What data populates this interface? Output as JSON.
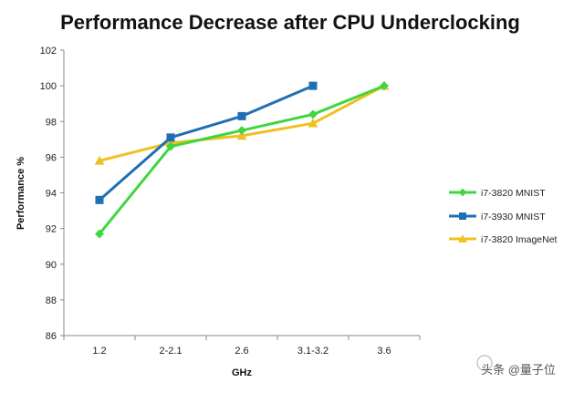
{
  "chart_data": {
    "type": "line",
    "title": "Performance Decrease after CPU Underclocking",
    "xlabel": "GHz",
    "ylabel": "Performance %",
    "categories": [
      "1.2",
      "2-2.1",
      "2.6",
      "3.1-3.2",
      "3.6"
    ],
    "ylim": [
      86,
      102
    ],
    "yticks": [
      86,
      88,
      90,
      92,
      94,
      96,
      98,
      100,
      102
    ],
    "grid": false,
    "legend_position": "right",
    "series": [
      {
        "name": "i7-3820 MNIST",
        "color": "#3fd63f",
        "marker": "diamond",
        "values": [
          91.7,
          96.6,
          97.5,
          98.4,
          100.0
        ]
      },
      {
        "name": "i7-3930 MNIST",
        "color": "#1f6fb2",
        "marker": "square",
        "values": [
          93.6,
          97.1,
          98.3,
          100.0,
          null
        ]
      },
      {
        "name": "i7-3820 ImageNet",
        "color": "#f0c020",
        "marker": "triangle",
        "values": [
          95.8,
          96.8,
          97.2,
          97.9,
          100.0
        ]
      }
    ]
  },
  "watermark": {
    "text": "头条 @量子位"
  }
}
